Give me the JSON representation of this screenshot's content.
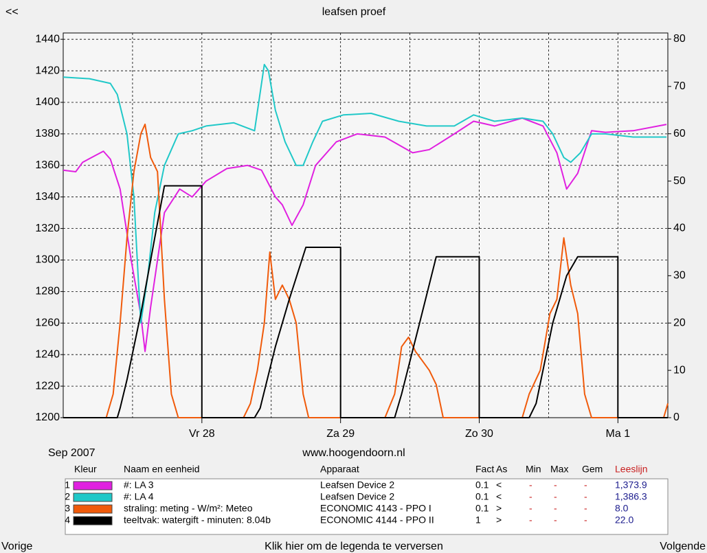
{
  "nav": {
    "back": "<<",
    "prev": "Vorige",
    "next": "Volgende",
    "refresh": "Klik hier om de legenda te verversen"
  },
  "period": "Sep 2007",
  "website": "www.hoogendoorn.nl",
  "chart_data": {
    "type": "line",
    "title": "leafsen proef",
    "xlim": [
      0,
      4.36
    ],
    "xticks": [
      {
        "value": 1,
        "label": "Vr 28"
      },
      {
        "value": 2,
        "label": "Za 29"
      },
      {
        "value": 3,
        "label": "Zo 30"
      },
      {
        "value": 4,
        "label": "Ma 1"
      }
    ],
    "xminor": [
      0.5,
      1.5,
      2.5,
      3.5
    ],
    "ylim": [
      1200,
      1444
    ],
    "yticks": [
      1200,
      1220,
      1240,
      1260,
      1280,
      1300,
      1320,
      1340,
      1360,
      1380,
      1400,
      1420,
      1440
    ],
    "y2lim": [
      0,
      81.3
    ],
    "y2ticks": [
      0,
      10,
      20,
      30,
      40,
      50,
      60,
      70,
      80
    ],
    "grid": true,
    "series": [
      {
        "name": "#: LA 3",
        "color": "#e020e0",
        "x": [
          0,
          0.09,
          0.14,
          0.29,
          0.34,
          0.41,
          0.49,
          0.56,
          0.59,
          0.63,
          0.73,
          0.84,
          0.93,
          1.03,
          1.18,
          1.33,
          1.43,
          1.53,
          1.58,
          1.65,
          1.73,
          1.82,
          1.97,
          2.12,
          2.32,
          2.52,
          2.64,
          2.82,
          2.96,
          3.11,
          3.31,
          3.46,
          3.56,
          3.63,
          3.71,
          3.81,
          3.91,
          4.11,
          4.35
        ],
        "values": [
          1357,
          1356,
          1362,
          1369,
          1364,
          1345,
          1300,
          1265,
          1242,
          1270,
          1330,
          1345,
          1340,
          1350,
          1358,
          1360,
          1357,
          1340,
          1335,
          1322,
          1335,
          1360,
          1375,
          1380,
          1378,
          1368,
          1370,
          1380,
          1388,
          1385,
          1390,
          1385,
          1368,
          1345,
          1355,
          1382,
          1381,
          1382,
          1386
        ]
      },
      {
        "name": "#: LA 4",
        "color": "#20c8c8",
        "x": [
          0,
          0.19,
          0.34,
          0.39,
          0.46,
          0.51,
          0.54,
          0.56,
          0.61,
          0.66,
          0.73,
          0.83,
          0.93,
          1.03,
          1.23,
          1.38,
          1.45,
          1.48,
          1.53,
          1.6,
          1.68,
          1.73,
          1.8,
          1.87,
          2.02,
          2.22,
          2.42,
          2.62,
          2.82,
          2.96,
          3.11,
          3.31,
          3.46,
          3.53,
          3.61,
          3.66,
          3.73,
          3.81,
          3.91,
          4.11,
          4.35
        ],
        "values": [
          1416,
          1415,
          1412,
          1405,
          1380,
          1340,
          1290,
          1260,
          1290,
          1330,
          1360,
          1380,
          1382,
          1385,
          1387,
          1382,
          1424,
          1420,
          1395,
          1375,
          1360,
          1360,
          1375,
          1388,
          1392,
          1393,
          1388,
          1385,
          1385,
          1392,
          1388,
          1390,
          1388,
          1380,
          1365,
          1362,
          1368,
          1380,
          1380,
          1378,
          1378
        ]
      },
      {
        "name": "straling: meting - W/m²: Meteo",
        "color": "#f05a0a",
        "axis": "y2",
        "x": [
          0,
          0.31,
          0.36,
          0.41,
          0.46,
          0.51,
          0.56,
          0.59,
          0.63,
          0.68,
          0.73,
          0.78,
          0.83,
          1.3,
          1.35,
          1.4,
          1.45,
          1.49,
          1.53,
          1.58,
          1.63,
          1.68,
          1.73,
          1.77,
          2.32,
          2.39,
          2.44,
          2.49,
          2.54,
          2.59,
          2.64,
          2.69,
          2.74,
          3.31,
          3.36,
          3.44,
          3.51,
          3.56,
          3.61,
          3.66,
          3.71,
          3.76,
          3.81,
          4.33,
          4.36
        ],
        "values": [
          0,
          0,
          5,
          20,
          38,
          52,
          60,
          62,
          55,
          52,
          25,
          5,
          0,
          0,
          3,
          10,
          20,
          35,
          25,
          28,
          25,
          20,
          5,
          0,
          0,
          5,
          15,
          17,
          14,
          12,
          10,
          7,
          0,
          0,
          5,
          10,
          22,
          25,
          38,
          28,
          22,
          5,
          0,
          0,
          3
        ]
      },
      {
        "name": "teeltvak: watergift - minuten: 8.04b",
        "color": "#000000",
        "axis": "y2",
        "x": [
          0,
          0.39,
          0.41,
          0.46,
          0.56,
          0.66,
          0.73,
          1.0,
          1.0,
          1.38,
          1.42,
          1.53,
          1.63,
          1.75,
          2.0,
          2.0,
          2.39,
          2.44,
          2.57,
          2.69,
          3.0,
          3.0,
          3.36,
          3.41,
          3.53,
          3.63,
          3.71,
          4.0,
          4.0,
          4.36
        ],
        "values": [
          0,
          0,
          2,
          8,
          22,
          38,
          49,
          49,
          0,
          0,
          2,
          15,
          25,
          36,
          36,
          0,
          0,
          5,
          20,
          34,
          34,
          0,
          0,
          3,
          20,
          30,
          34,
          34,
          0,
          0
        ]
      }
    ]
  },
  "legend_table": {
    "headers": {
      "color": "Kleur",
      "name": "Naam en eenheid",
      "device": "Apparaat",
      "fact": "Fact",
      "axis": "As",
      "min": "Min",
      "max": "Max",
      "avg": "Gem",
      "reading": "Leeslijn"
    },
    "rows": [
      {
        "index": "1",
        "device": "Leafsen Device 2",
        "fact": "0.1",
        "axis": "<",
        "min": "-",
        "max": "-",
        "avg": "-",
        "reading": "1,373.9"
      },
      {
        "index": "2",
        "device": "Leafsen Device 2",
        "fact": "0.1",
        "axis": "<",
        "min": "-",
        "max": "-",
        "avg": "-",
        "reading": "1,386.3"
      },
      {
        "index": "3",
        "device": "ECONOMIC 4143 - PPO I",
        "fact": "0.1",
        "axis": ">",
        "min": "-",
        "max": "-",
        "avg": "-",
        "reading": "8.0"
      },
      {
        "index": "4",
        "device": "ECONOMIC 4144 - PPO II",
        "fact": "1",
        "axis": ">",
        "min": "-",
        "max": "-",
        "avg": "-",
        "reading": "22.0"
      }
    ]
  }
}
